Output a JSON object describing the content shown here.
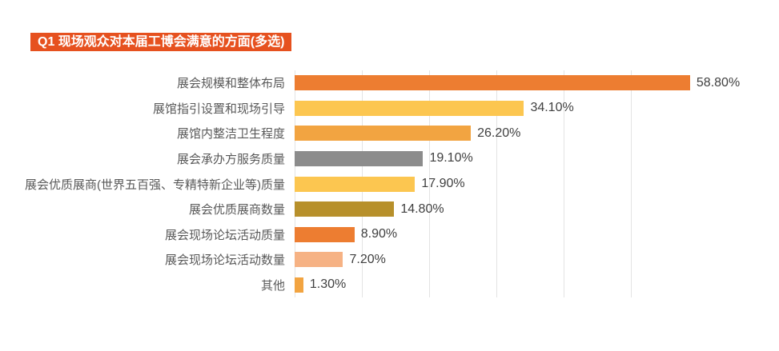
{
  "title_badge": {
    "label": "Q1 现场观众对本届工博会满意的方面(多选)"
  },
  "colors": {
    "badge_bg": "#E6511F",
    "badge_text": "#FFFFFF",
    "gridline": "#E3E3E3",
    "category_text": "#595959",
    "value_text": "#404040",
    "background": "#FFFFFF"
  },
  "chart_data": {
    "type": "bar",
    "orientation": "horizontal",
    "title": "Q1 现场观众对本届工博会满意的方面(多选)",
    "categories": [
      "展会规模和整体布局",
      "展馆指引设置和现场引导",
      "展馆内整洁卫生程度",
      "展会承办方服务质量",
      "展会优质展商(世界五百强、专精特新企业等)质量",
      "展会优质展商数量",
      "展会现场论坛活动质量",
      "展会现场论坛活动数量",
      "其他"
    ],
    "values": [
      58.8,
      34.1,
      26.2,
      19.1,
      17.9,
      14.8,
      8.9,
      7.2,
      1.3
    ],
    "value_labels": [
      "58.80%",
      "34.10%",
      "26.20%",
      "19.10%",
      "17.90%",
      "14.80%",
      "8.90%",
      "7.20%",
      "1.30%"
    ],
    "bar_colors": [
      "#ED7D31",
      "#FCC650",
      "#F2A441",
      "#8C8C8C",
      "#FCC650",
      "#B7902B",
      "#ED7D31",
      "#F6B284",
      "#F2A441"
    ],
    "xlabel": "",
    "ylabel": "",
    "xlim": [
      0,
      60
    ],
    "gridline_step": 10,
    "grid": "vertical-only",
    "legend_position": "none",
    "data_labels": "outside-end"
  }
}
